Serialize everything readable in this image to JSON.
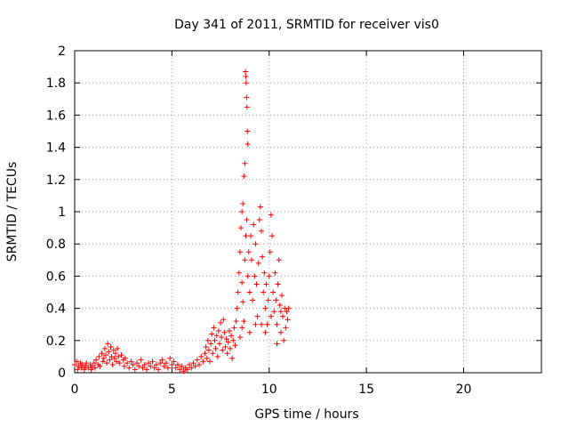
{
  "chart_data": {
    "type": "scatter",
    "title": "Day 341 of 2011, SRMTID for receiver vis0",
    "xlabel": "GPS time / hours",
    "ylabel": "SRMTID / TECUs",
    "xlim": [
      0,
      24
    ],
    "ylim": [
      0,
      2
    ],
    "xticks": [
      0,
      5,
      10,
      15,
      20
    ],
    "yticks": [
      0,
      0.2,
      0.4,
      0.6,
      0.8,
      1,
      1.2,
      1.4,
      1.6,
      1.8,
      2
    ],
    "xtick_labels": [
      "0",
      "5",
      "10",
      "15",
      "20"
    ],
    "ytick_labels": [
      "0",
      "0.2",
      "0.4",
      "0.6",
      "0.8",
      "1",
      "1.2",
      "1.4",
      "1.6",
      "1.8",
      "2"
    ],
    "marker": "+",
    "color": "#ff0000",
    "grid": true,
    "series": [
      {
        "name": "SRMTID",
        "points": [
          [
            0.0,
            0.05
          ],
          [
            0.1,
            0.07
          ],
          [
            0.15,
            0.02
          ],
          [
            0.2,
            0.04
          ],
          [
            0.3,
            0.06
          ],
          [
            0.35,
            0.03
          ],
          [
            0.4,
            0.05
          ],
          [
            0.5,
            0.02
          ],
          [
            0.55,
            0.04
          ],
          [
            0.6,
            0.06
          ],
          [
            0.7,
            0.03
          ],
          [
            0.8,
            0.05
          ],
          [
            0.85,
            0.02
          ],
          [
            0.9,
            0.04
          ],
          [
            1.0,
            0.06
          ],
          [
            1.05,
            0.03
          ],
          [
            1.1,
            0.08
          ],
          [
            1.2,
            0.05
          ],
          [
            1.25,
            0.1
          ],
          [
            1.3,
            0.04
          ],
          [
            1.4,
            0.12
          ],
          [
            1.45,
            0.07
          ],
          [
            1.5,
            0.09
          ],
          [
            1.55,
            0.15
          ],
          [
            1.6,
            0.11
          ],
          [
            1.65,
            0.06
          ],
          [
            1.7,
            0.18
          ],
          [
            1.75,
            0.13
          ],
          [
            1.8,
            0.08
          ],
          [
            1.85,
            0.16
          ],
          [
            1.9,
            0.1
          ],
          [
            1.95,
            0.05
          ],
          [
            2.0,
            0.14
          ],
          [
            2.05,
            0.09
          ],
          [
            2.1,
            0.12
          ],
          [
            2.15,
            0.07
          ],
          [
            2.2,
            0.15
          ],
          [
            2.25,
            0.1
          ],
          [
            2.3,
            0.06
          ],
          [
            2.4,
            0.11
          ],
          [
            2.5,
            0.08
          ],
          [
            2.55,
            0.04
          ],
          [
            2.6,
            0.09
          ],
          [
            2.7,
            0.06
          ],
          [
            2.8,
            0.03
          ],
          [
            2.9,
            0.07
          ],
          [
            3.0,
            0.05
          ],
          [
            3.1,
            0.02
          ],
          [
            3.2,
            0.06
          ],
          [
            3.3,
            0.04
          ],
          [
            3.4,
            0.08
          ],
          [
            3.5,
            0.03
          ],
          [
            3.6,
            0.05
          ],
          [
            3.7,
            0.02
          ],
          [
            3.8,
            0.06
          ],
          [
            3.9,
            0.04
          ],
          [
            4.0,
            0.07
          ],
          [
            4.1,
            0.03
          ],
          [
            4.2,
            0.05
          ],
          [
            4.3,
            0.02
          ],
          [
            4.4,
            0.06
          ],
          [
            4.5,
            0.08
          ],
          [
            4.6,
            0.04
          ],
          [
            4.7,
            0.06
          ],
          [
            4.8,
            0.03
          ],
          [
            4.9,
            0.09
          ],
          [
            5.0,
            0.05
          ],
          [
            5.1,
            0.07
          ],
          [
            5.2,
            0.03
          ],
          [
            5.3,
            0.05
          ],
          [
            5.4,
            0.02
          ],
          [
            5.5,
            0.04
          ],
          [
            5.6,
            0.01
          ],
          [
            5.7,
            0.03
          ],
          [
            5.8,
            0.02
          ],
          [
            5.9,
            0.05
          ],
          [
            6.0,
            0.03
          ],
          [
            6.1,
            0.06
          ],
          [
            6.2,
            0.04
          ],
          [
            6.3,
            0.08
          ],
          [
            6.4,
            0.05
          ],
          [
            6.5,
            0.1
          ],
          [
            6.6,
            0.07
          ],
          [
            6.7,
            0.12
          ],
          [
            6.75,
            0.16
          ],
          [
            6.8,
            0.09
          ],
          [
            6.85,
            0.2
          ],
          [
            6.9,
            0.14
          ],
          [
            6.95,
            0.07
          ],
          [
            7.0,
            0.18
          ],
          [
            7.05,
            0.24
          ],
          [
            7.1,
            0.12
          ],
          [
            7.15,
            0.28
          ],
          [
            7.2,
            0.2
          ],
          [
            7.25,
            0.15
          ],
          [
            7.3,
            0.23
          ],
          [
            7.35,
            0.1
          ],
          [
            7.4,
            0.26
          ],
          [
            7.45,
            0.18
          ],
          [
            7.5,
            0.31
          ],
          [
            7.55,
            0.22
          ],
          [
            7.6,
            0.14
          ],
          [
            7.65,
            0.33
          ],
          [
            7.7,
            0.25
          ],
          [
            7.75,
            0.16
          ],
          [
            7.8,
            0.21
          ],
          [
            7.85,
            0.12
          ],
          [
            7.9,
            0.19
          ],
          [
            7.95,
            0.26
          ],
          [
            8.0,
            0.15
          ],
          [
            8.05,
            0.23
          ],
          [
            8.1,
            0.09
          ],
          [
            8.15,
            0.2
          ],
          [
            8.2,
            0.28
          ],
          [
            8.25,
            0.17
          ],
          [
            8.3,
            0.32
          ],
          [
            8.35,
            0.4
          ],
          [
            8.4,
            0.5
          ],
          [
            8.45,
            0.62
          ],
          [
            8.5,
            0.75
          ],
          [
            8.55,
            0.9
          ],
          [
            8.6,
            1.0
          ],
          [
            8.65,
            1.05
          ],
          [
            8.7,
            1.22
          ],
          [
            8.75,
            1.3
          ],
          [
            8.78,
            1.87
          ],
          [
            8.8,
            1.84
          ],
          [
            8.82,
            1.8
          ],
          [
            8.84,
            1.71
          ],
          [
            8.86,
            1.65
          ],
          [
            8.88,
            1.5
          ],
          [
            8.9,
            1.42
          ],
          [
            8.6,
            0.56
          ],
          [
            8.65,
            0.44
          ],
          [
            8.7,
            0.32
          ],
          [
            8.75,
            0.7
          ],
          [
            8.8,
            0.85
          ],
          [
            8.85,
            0.95
          ],
          [
            8.9,
            0.6
          ],
          [
            8.95,
            0.75
          ],
          [
            9.0,
            0.5
          ],
          [
            9.05,
            0.85
          ],
          [
            9.1,
            0.7
          ],
          [
            9.15,
            0.45
          ],
          [
            9.2,
            0.92
          ],
          [
            9.25,
            0.6
          ],
          [
            9.3,
            0.8
          ],
          [
            9.35,
            0.55
          ],
          [
            9.4,
            0.35
          ],
          [
            9.45,
            0.68
          ],
          [
            9.5,
            0.95
          ],
          [
            9.55,
            1.03
          ],
          [
            9.6,
            0.88
          ],
          [
            9.65,
            0.72
          ],
          [
            9.7,
            0.5
          ],
          [
            9.75,
            0.62
          ],
          [
            9.8,
            0.4
          ],
          [
            9.85,
            0.55
          ],
          [
            9.9,
            0.3
          ],
          [
            9.95,
            0.45
          ],
          [
            10.0,
            0.6
          ],
          [
            10.05,
            0.75
          ],
          [
            10.1,
            0.98
          ],
          [
            10.15,
            0.85
          ],
          [
            10.2,
            0.5
          ],
          [
            10.25,
            0.38
          ],
          [
            10.3,
            0.62
          ],
          [
            10.35,
            0.45
          ],
          [
            10.4,
            0.3
          ],
          [
            10.45,
            0.55
          ],
          [
            10.5,
            0.7
          ],
          [
            10.55,
            0.42
          ],
          [
            10.6,
            0.25
          ],
          [
            10.65,
            0.48
          ],
          [
            10.7,
            0.35
          ],
          [
            10.75,
            0.2
          ],
          [
            10.8,
            0.4
          ],
          [
            10.85,
            0.28
          ],
          [
            10.9,
            0.38
          ],
          [
            10.95,
            0.33
          ],
          [
            11.0,
            0.4
          ],
          [
            8.5,
            0.22
          ],
          [
            8.6,
            0.28
          ],
          [
            9.0,
            0.25
          ],
          [
            9.3,
            0.3
          ],
          [
            9.6,
            0.3
          ],
          [
            9.8,
            0.25
          ],
          [
            10.1,
            0.35
          ],
          [
            10.4,
            0.18
          ],
          [
            10.6,
            0.38
          ]
        ]
      }
    ]
  }
}
